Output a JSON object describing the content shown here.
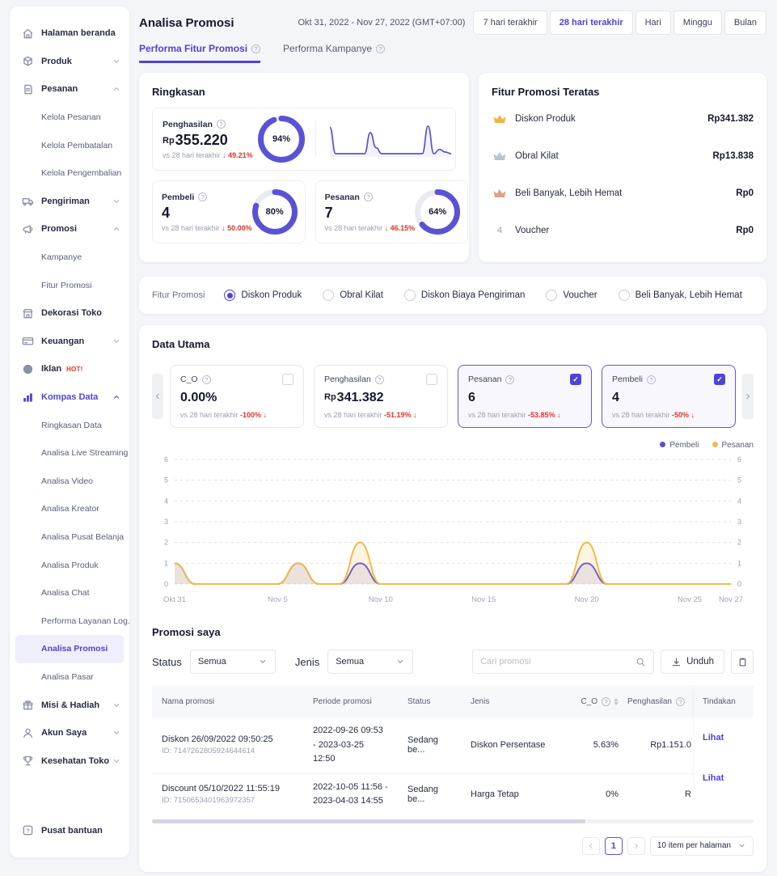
{
  "colors": {
    "accent": "#4f43d8",
    "donut_purple": "#5a52d6",
    "pesanan_yellow": "#f0bb4b",
    "negative": "#e0362c"
  },
  "sidebar": {
    "items": [
      {
        "label": "Halaman beranda",
        "icon": "home-icon"
      },
      {
        "label": "Produk",
        "icon": "product-icon",
        "chevron": "down"
      },
      {
        "label": "Pesanan",
        "icon": "order-icon",
        "chevron": "up",
        "children": [
          "Kelola Pesanan",
          "Kelola Pembatalan",
          "Kelola Pengembalian"
        ]
      },
      {
        "label": "Pengiriman",
        "icon": "truck-icon",
        "chevron": "down"
      },
      {
        "label": "Promosi",
        "icon": "megaphone-icon",
        "chevron": "up",
        "children": [
          "Kampanye",
          "Fitur Promosi"
        ]
      },
      {
        "label": "Dekorasi Toko",
        "icon": "store-icon"
      },
      {
        "label": "Keuangan",
        "icon": "card-icon",
        "chevron": "down"
      },
      {
        "label": "Iklan",
        "icon": "ad-icon",
        "badge": "HOT!"
      },
      {
        "label": "Kompas Data",
        "icon": "chart-icon",
        "chevron": "up",
        "active": true,
        "children": [
          "Ringkasan Data",
          "Analisa Live Streaming",
          "Analisa Video",
          "Analisa Kreator",
          "Analisa Pusat Belanja",
          "Analisa Produk",
          "Analisa Chat",
          "Performa Layanan Log...",
          "Analisa Promosi",
          "Analisa Pasar"
        ],
        "active_child": "Analisa Promosi"
      },
      {
        "label": "Misi & Hadiah",
        "icon": "gift-icon",
        "chevron": "down"
      },
      {
        "label": "Akun Saya",
        "icon": "user-icon",
        "chevron": "down"
      },
      {
        "label": "Kesehatan Toko",
        "icon": "trophy-icon",
        "chevron": "down"
      }
    ],
    "footer": {
      "label": "Pusat bantuan",
      "icon": "help-icon"
    }
  },
  "header": {
    "title": "Analisa Promosi",
    "date_range": "Okt 31, 2022 - Nov 27, 2022 (GMT+07:00)",
    "range_buttons": [
      {
        "label": "7 hari terakhir",
        "active": false
      },
      {
        "label": "28 hari terakhir",
        "active": true
      },
      {
        "label": "Hari",
        "active": false
      },
      {
        "label": "Minggu",
        "active": false
      },
      {
        "label": "Bulan",
        "active": false
      }
    ]
  },
  "tabs": [
    {
      "label": "Performa Fitur Promosi",
      "active": true,
      "info_icon": true
    },
    {
      "label": "Performa Kampanye",
      "active": false,
      "info_icon": true
    }
  ],
  "ringkasan": {
    "title": "Ringkasan",
    "cards": {
      "penghasilan": {
        "label": "Penghasilan",
        "prefix": "Rp",
        "value": "355.220",
        "vs_label": "vs 28 hari terakhir",
        "arrow": "↓",
        "change": "49.21%",
        "donut_pct": 94,
        "sparkline": [
          2.6,
          0.15,
          0.15,
          0.15,
          0.15,
          0.15,
          0.15,
          2.1,
          0.7,
          0.15,
          0.15,
          0.15,
          0.15,
          0.15,
          0.15,
          0.15,
          0.15,
          2.7,
          0.15,
          0.55,
          0.3,
          0.15
        ]
      },
      "pembeli": {
        "label": "Pembeli",
        "value": "4",
        "vs_label": "vs 28 hari terakhir",
        "arrow": "↓",
        "change": "50.00%",
        "donut_pct": 80
      },
      "pesanan": {
        "label": "Pesanan",
        "value": "7",
        "vs_label": "vs 28 hari terakhir",
        "arrow": "↓",
        "change": "46.15%",
        "donut_pct": 64
      }
    }
  },
  "top_features": {
    "title": "Fitur Promosi Teratas",
    "rows": [
      {
        "rank": 1,
        "icon": "crown-gold-icon",
        "label": "Diskon Produk",
        "value": "Rp341.382"
      },
      {
        "rank": 2,
        "icon": "crown-silver-icon",
        "label": "Obral Kilat",
        "value": "Rp13.838"
      },
      {
        "rank": 3,
        "icon": "crown-bronze-icon",
        "label": "Beli Banyak, Lebih Hemat",
        "value": "Rp0"
      },
      {
        "rank": 4,
        "icon": "rank-number",
        "label": "Voucher",
        "value": "Rp0"
      }
    ]
  },
  "fitur_filter": {
    "label": "Fitur Promosi",
    "options": [
      {
        "label": "Diskon Produk",
        "selected": true
      },
      {
        "label": "Obral Kilat",
        "selected": false
      },
      {
        "label": "Diskon Biaya Pengiriman",
        "selected": false
      },
      {
        "label": "Voucher",
        "selected": false
      },
      {
        "label": "Beli Banyak, Lebih Hemat",
        "selected": false
      }
    ]
  },
  "data_utama": {
    "title": "Data Utama",
    "metrics": [
      {
        "label": "C_O",
        "value": "0.00%",
        "prefix": "",
        "vs_label": "vs 28 hari terakhir",
        "change": "-100%",
        "arrow": "↓",
        "checked": false
      },
      {
        "label": "Penghasilan",
        "prefix": "Rp",
        "value": "341.382",
        "vs_label": "vs 28 hari terakhir",
        "change": "-51.19%",
        "arrow": "↓",
        "checked": false
      },
      {
        "label": "Pesanan",
        "value": "6",
        "prefix": "",
        "vs_label": "vs 28 hari terakhir",
        "change": "-53.85%",
        "arrow": "↓",
        "checked": true
      },
      {
        "label": "Pembeli",
        "value": "4",
        "prefix": "",
        "vs_label": "vs 28 hari terakhir",
        "change": "-50%",
        "arrow": "↓",
        "checked": true
      }
    ]
  },
  "chart_data": {
    "type": "line",
    "x_range": [
      "Okt 31, 2022",
      "Nov 27, 2022"
    ],
    "x_tick_labels": [
      "Okt 31",
      "Nov 5",
      "Nov 10",
      "Nov 15",
      "Nov 20",
      "Nov 25",
      "Nov 27"
    ],
    "x_tick_positions": [
      0,
      5,
      10,
      15,
      20,
      25,
      27
    ],
    "ylim": [
      0,
      6
    ],
    "yticks": [
      0,
      1,
      2,
      3,
      4,
      5,
      6
    ],
    "grid": true,
    "legend_position": "top-right",
    "series": [
      {
        "name": "Pembeli",
        "color": "#5a52d6",
        "values": [
          1,
          0,
          0,
          0,
          0,
          0,
          1,
          0,
          0,
          1,
          0,
          0,
          0,
          0,
          0,
          0,
          0,
          0,
          0,
          0,
          1,
          0,
          0,
          0,
          0,
          0,
          0,
          0
        ]
      },
      {
        "name": "Pesanan",
        "color": "#f0bb4b",
        "values": [
          1,
          0,
          0,
          0,
          0,
          0,
          1,
          0,
          0,
          2,
          0,
          0,
          0,
          0,
          0,
          0,
          0,
          0,
          0,
          0,
          2,
          0,
          0,
          0,
          0,
          0,
          0,
          0
        ]
      }
    ]
  },
  "promosi_saya": {
    "title": "Promosi saya",
    "status_label": "Status",
    "status_value": "Semua",
    "jenis_label": "Jenis",
    "jenis_value": "Semua",
    "search_placeholder": "Cari promosi",
    "download_label": "Unduh",
    "table": {
      "columns": [
        "Nama promosi",
        "Periode promosi",
        "Status",
        "Jenis",
        "C_O",
        "Penghasilan",
        "Tindakan"
      ],
      "rows": [
        {
          "name": "Diskon 26/09/2022 09:50:25",
          "id": "ID: 7147262805924644614",
          "period": "2022-09-26 09:53 - 2023-03-25 12:50",
          "status": "Sedang be...",
          "jenis": "Diskon Persentase",
          "c_o": "5.63%",
          "penghasilan": "Rp1.151.0",
          "action": "Lihat"
        },
        {
          "name": "Discount 05/10/2022 11:55:19",
          "id": "ID: 7150653401963972357",
          "period": "2022-10-05 11:56 - 2023-04-03 14:55",
          "status": "Sedang be...",
          "jenis": "Harga Tetap",
          "c_o": "0%",
          "penghasilan": "R",
          "action": "Lihat"
        }
      ]
    },
    "pagination": {
      "page": "1",
      "per_page": "10 item per halaman"
    }
  }
}
